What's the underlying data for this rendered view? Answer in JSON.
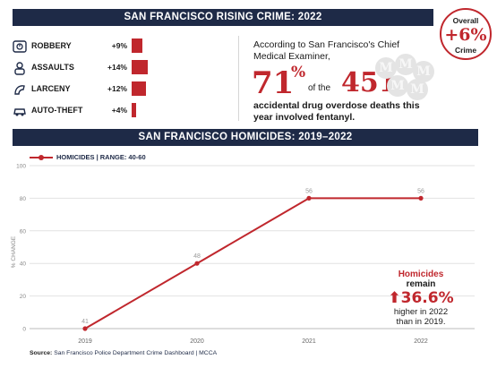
{
  "header_rising": "SAN FRANCISCO RISING CRIME: 2022",
  "crimes": [
    {
      "label": "ROBBERY",
      "pct": "+9%",
      "value": 9,
      "icon": "robbery-icon"
    },
    {
      "label": "ASSAULTS",
      "pct": "+14%",
      "value": 14,
      "icon": "assault-icon"
    },
    {
      "label": "LARCENY",
      "pct": "+12%",
      "value": 12,
      "icon": "larceny-icon"
    },
    {
      "label": "AUTO-THEFT",
      "pct": "+4%",
      "value": 4,
      "icon": "car-icon"
    }
  ],
  "stat": {
    "intro": "According to San Francisco's Chief Medical Examiner,",
    "pct": "71",
    "pct_symbol": "%",
    "of_the": "of the",
    "count": "451",
    "outro": "accidental drug overdose deaths this year involved fentanyl."
  },
  "overall": {
    "label": "Overall",
    "value": "+6%",
    "sub": "Crime"
  },
  "header_homicides": "SAN FRANCISCO HOMICIDES: 2019–2022",
  "legend": "HOMICIDES  |  RANGE: 40-60",
  "note": {
    "red": "Homicides",
    "rest": " remain",
    "big": "36.6%",
    "line3": "higher in 2022 than in 2019."
  },
  "source": {
    "prefix": "Source:",
    "text": " San Francisco Police Department Crime Dashboard  |  MCCA"
  },
  "colors": {
    "accent": "#c0272d",
    "navy": "#1e2a47"
  },
  "chart_data": {
    "type": "line",
    "x": [
      "2019",
      "2020",
      "2021",
      "2022"
    ],
    "series": [
      {
        "name": "HOMICIDES",
        "values": [
          0,
          40,
          80,
          80
        ],
        "labels": [
          "41",
          "48",
          "56",
          "56"
        ]
      }
    ],
    "ylabel": "% CHANGE",
    "ylim": [
      0,
      100
    ],
    "yticks": [
      "0",
      "20",
      "40",
      "60",
      "80",
      "100"
    ],
    "grid": true,
    "legend": "top-left"
  }
}
